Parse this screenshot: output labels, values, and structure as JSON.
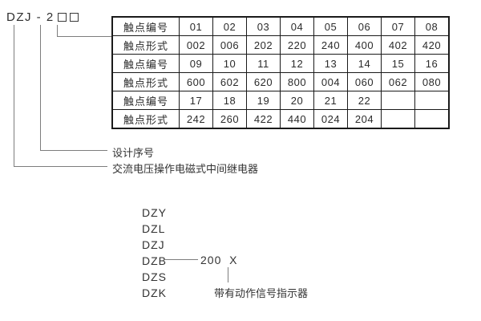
{
  "model_code": {
    "prefix": "DZJ - 2"
  },
  "labels": {
    "design_serial": "设计序号",
    "relay_description": "交流电压操作电磁式中间继电器"
  },
  "contact_table": {
    "rows": [
      {
        "label": "触点编号",
        "cells": [
          "01",
          "02",
          "03",
          "04",
          "05",
          "06",
          "07",
          "08"
        ]
      },
      {
        "label": "触点形式",
        "cells": [
          "002",
          "006",
          "202",
          "220",
          "240",
          "400",
          "402",
          "420"
        ]
      },
      {
        "label": "触点编号",
        "cells": [
          "09",
          "10",
          "11",
          "12",
          "13",
          "14",
          "15",
          "16"
        ]
      },
      {
        "label": "触点形式",
        "cells": [
          "600",
          "602",
          "620",
          "800",
          "004",
          "060",
          "062",
          "080"
        ]
      },
      {
        "label": "触点编号",
        "cells": [
          "17",
          "18",
          "19",
          "20",
          "21",
          "22",
          "",
          ""
        ]
      },
      {
        "label": "触点形式",
        "cells": [
          "242",
          "260",
          "422",
          "440",
          "024",
          "204",
          "",
          ""
        ]
      }
    ]
  },
  "model_series": {
    "items": [
      "DZY",
      "DZL",
      "DZJ",
      "DZB",
      "DZS",
      "DZK"
    ],
    "dzb_suffix": "200  X",
    "indicator_note": "带有动作信号指示器"
  },
  "colors": {
    "text": "#333333",
    "table_border": "#1a1a1a",
    "leader_line": "#7d7d7d",
    "background": "#ffffff"
  }
}
